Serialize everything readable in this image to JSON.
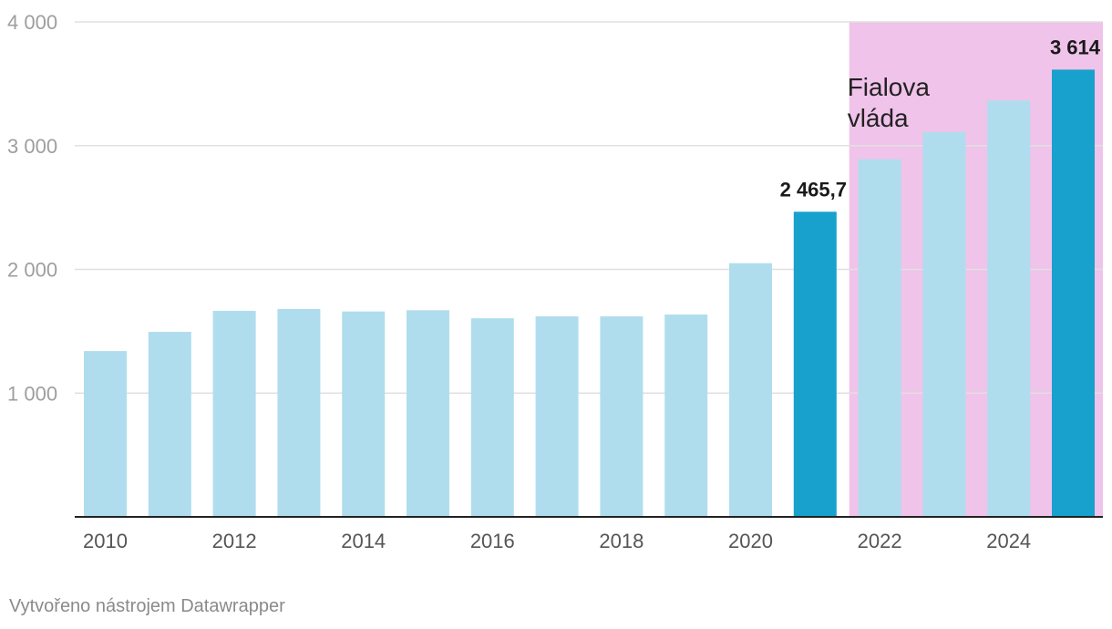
{
  "chart_data": {
    "type": "bar",
    "title": "",
    "xlabel": "",
    "ylabel": "",
    "categories": [
      "2010",
      "2011",
      "2012",
      "2013",
      "2014",
      "2015",
      "2016",
      "2017",
      "2018",
      "2019",
      "2020",
      "2021",
      "2022",
      "2023",
      "2024",
      "2025"
    ],
    "values": [
      1340,
      1495,
      1665,
      1680,
      1660,
      1670,
      1605,
      1620,
      1620,
      1635,
      2050,
      2465.7,
      2890,
      3110,
      3365,
      3614
    ],
    "highlighted": [
      "2021",
      "2025"
    ],
    "data_labels": [
      {
        "category": "2021",
        "text": "2 465,7"
      },
      {
        "category": "2025",
        "text": "3 614"
      }
    ],
    "ylim": [
      0,
      4000
    ],
    "yticks": [
      {
        "value": 1000,
        "label": "1 000"
      },
      {
        "value": 2000,
        "label": "2 000"
      },
      {
        "value": 3000,
        "label": "3 000"
      },
      {
        "value": 4000,
        "label": "4 000"
      }
    ],
    "xticks": [
      "2010",
      "2012",
      "2014",
      "2016",
      "2018",
      "2020",
      "2022",
      "2024"
    ],
    "grid": true,
    "shaded_region": {
      "from_category": "2022",
      "to_category": "2025",
      "label_lines": [
        "Fialova",
        "vláda"
      ]
    },
    "colors": {
      "bar": "#b0dded",
      "bar_highlight": "#18a1cd",
      "region": "#f0c3ea",
      "grid": "#e0e0e0",
      "axis": "#222222"
    }
  },
  "footer": {
    "credit": "Vytvořeno nástrojem Datawrapper"
  }
}
